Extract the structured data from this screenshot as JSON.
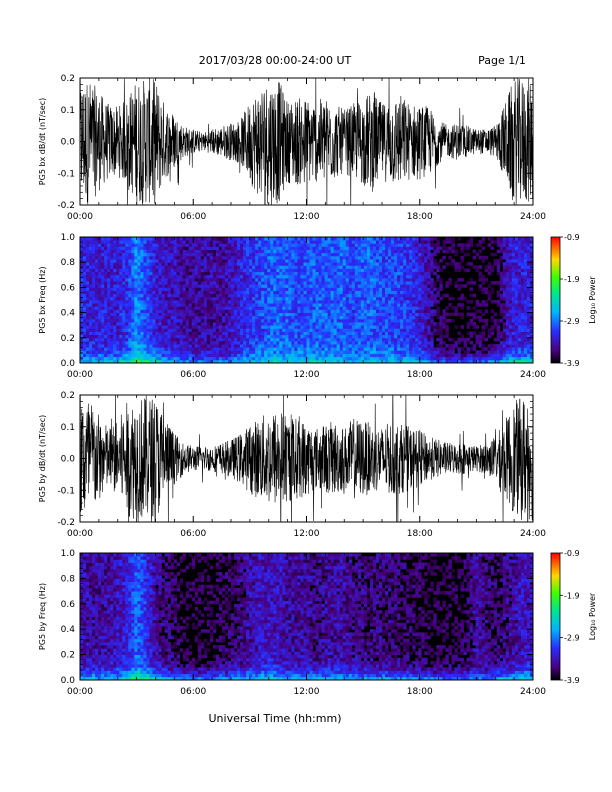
{
  "header": {
    "title": "2017/03/28   00:00-24:00 UT",
    "page": "Page 1/1"
  },
  "footer": {
    "xlabel": "Universal Time (hh:mm)"
  },
  "colorbar": {
    "label": "Log₁₀ Power",
    "ticks": [
      "-0.9",
      "-1.9",
      "-2.9",
      "-3.9"
    ],
    "range": [
      -3.9,
      -0.9
    ],
    "colormap": "rainbow"
  },
  "colors": {
    "trace": "#000000",
    "background": "#ffffff",
    "spectrogram_floor": "#000000"
  },
  "chart_data": [
    {
      "type": "line",
      "ylabel": "PG5 bx dB/dt (nT/sec)",
      "xlim": [
        "00:00",
        "24:00"
      ],
      "ylim": [
        -0.2,
        0.2
      ],
      "xticks": [
        "00:00",
        "06:00",
        "12:00",
        "18:00",
        "24:00"
      ],
      "yticks": [
        "-0.2",
        "-0.1",
        "0.0",
        "0.1",
        "0.2"
      ],
      "series": [
        {
          "x_hours": [
            0.0,
            0.5,
            1.0,
            1.5,
            2.0,
            2.5,
            3.0,
            3.5,
            4.0,
            4.5,
            5.0,
            5.5,
            6.0,
            6.5,
            7.0,
            7.5,
            8.0,
            8.5,
            9.0,
            9.5,
            10.0,
            10.5,
            11.0,
            11.5,
            12.0,
            12.5,
            13.0,
            13.5,
            14.0,
            14.5,
            15.0,
            15.5,
            16.0,
            16.5,
            17.0,
            17.5,
            18.0,
            18.5,
            19.0,
            19.5,
            20.0,
            20.5,
            21.0,
            21.5,
            22.0,
            22.5,
            23.0,
            23.5,
            24.0
          ],
          "amplitude": [
            0.2,
            0.2,
            0.16,
            0.12,
            0.11,
            0.14,
            0.2,
            0.2,
            0.2,
            0.12,
            0.09,
            0.05,
            0.04,
            0.03,
            0.04,
            0.05,
            0.06,
            0.07,
            0.13,
            0.18,
            0.2,
            0.2,
            0.13,
            0.14,
            0.14,
            0.13,
            0.14,
            0.12,
            0.1,
            0.12,
            0.14,
            0.16,
            0.12,
            0.14,
            0.15,
            0.12,
            0.12,
            0.11,
            0.07,
            0.05,
            0.06,
            0.05,
            0.04,
            0.04,
            0.05,
            0.12,
            0.2,
            0.2,
            0.2
          ]
        }
      ]
    },
    {
      "type": "heatmap",
      "ylabel": "PG5 bx Freq (Hz)",
      "xlim": [
        "00:00",
        "24:00"
      ],
      "ylim": [
        0.0,
        1.0
      ],
      "xticks": [
        "00:00",
        "06:00",
        "12:00",
        "18:00",
        "24:00"
      ],
      "yticks": [
        "0.0",
        "0.2",
        "0.4",
        "0.6",
        "0.8",
        "1.0"
      ],
      "zlim": [
        -3.9,
        -0.9
      ],
      "x_hours": [
        0.0,
        0.5,
        1.0,
        1.5,
        2.0,
        2.5,
        3.0,
        3.5,
        4.0,
        4.5,
        5.0,
        5.5,
        6.0,
        6.5,
        7.0,
        7.5,
        8.0,
        8.5,
        9.0,
        9.5,
        10.0,
        10.5,
        11.0,
        11.5,
        12.0,
        12.5,
        13.0,
        13.5,
        14.0,
        14.5,
        15.0,
        15.5,
        16.0,
        16.5,
        17.0,
        17.5,
        18.0,
        18.5,
        19.0,
        19.5,
        20.0,
        20.5,
        21.0,
        21.5,
        22.0,
        22.5,
        23.0,
        23.5,
        24.0
      ],
      "broadband_log_power": [
        -3.2,
        -3.3,
        -3.3,
        -3.3,
        -3.3,
        -3.2,
        -2.8,
        -3.1,
        -3.3,
        -3.4,
        -3.4,
        -3.5,
        -3.5,
        -3.5,
        -3.5,
        -3.5,
        -3.4,
        -3.3,
        -3.2,
        -3.1,
        -3.0,
        -3.0,
        -3.0,
        -3.1,
        -3.0,
        -3.0,
        -3.0,
        -3.0,
        -3.0,
        -3.1,
        -3.0,
        -3.0,
        -3.1,
        -3.1,
        -3.1,
        -3.2,
        -3.3,
        -3.5,
        -3.7,
        -3.8,
        -3.8,
        -3.8,
        -3.8,
        -3.8,
        -3.8,
        -3.5,
        -3.3,
        -3.3,
        -3.3
      ],
      "low_freq_log_power": [
        -2.6,
        -2.5,
        -2.4,
        -2.5,
        -2.4,
        -2.1,
        -1.8,
        -1.9,
        -2.2,
        -2.4,
        -2.5,
        -2.6,
        -2.7,
        -2.7,
        -2.8,
        -2.7,
        -2.7,
        -2.6,
        -2.5,
        -2.4,
        -2.3,
        -2.3,
        -2.4,
        -2.4,
        -2.4,
        -2.4,
        -2.4,
        -2.5,
        -2.5,
        -2.5,
        -2.5,
        -2.5,
        -2.5,
        -2.5,
        -2.5,
        -2.5,
        -2.6,
        -2.7,
        -2.8,
        -2.9,
        -3.0,
        -3.0,
        -2.9,
        -2.8,
        -2.5,
        -2.3,
        -2.2,
        -2.2,
        -2.2
      ]
    },
    {
      "type": "line",
      "ylabel": "PG5 by dB/dt (nT/sec)",
      "xlim": [
        "00:00",
        "24:00"
      ],
      "ylim": [
        -0.2,
        0.2
      ],
      "xticks": [
        "00:00",
        "06:00",
        "12:00",
        "18:00",
        "24:00"
      ],
      "yticks": [
        "-0.2",
        "-0.1",
        "0.0",
        "0.1",
        "0.2"
      ],
      "series": [
        {
          "x_hours": [
            0.0,
            0.5,
            1.0,
            1.5,
            2.0,
            2.5,
            3.0,
            3.5,
            4.0,
            4.5,
            5.0,
            5.5,
            6.0,
            6.5,
            7.0,
            7.5,
            8.0,
            8.5,
            9.0,
            9.5,
            10.0,
            10.5,
            11.0,
            11.5,
            12.0,
            12.5,
            13.0,
            13.5,
            14.0,
            14.5,
            15.0,
            15.5,
            16.0,
            16.5,
            17.0,
            17.5,
            18.0,
            18.5,
            19.0,
            19.5,
            20.0,
            20.5,
            21.0,
            21.5,
            22.0,
            22.5,
            23.0,
            23.5,
            24.0
          ],
          "amplitude": [
            0.2,
            0.2,
            0.14,
            0.1,
            0.12,
            0.18,
            0.2,
            0.2,
            0.2,
            0.14,
            0.08,
            0.05,
            0.04,
            0.04,
            0.04,
            0.05,
            0.06,
            0.08,
            0.11,
            0.13,
            0.15,
            0.16,
            0.14,
            0.13,
            0.12,
            0.1,
            0.11,
            0.12,
            0.1,
            0.13,
            0.12,
            0.11,
            0.1,
            0.12,
            0.11,
            0.1,
            0.09,
            0.07,
            0.06,
            0.05,
            0.05,
            0.05,
            0.04,
            0.05,
            0.07,
            0.12,
            0.18,
            0.2,
            0.2
          ]
        }
      ]
    },
    {
      "type": "heatmap",
      "ylabel": "PG5 by Freq (Hz)",
      "xlim": [
        "00:00",
        "24:00"
      ],
      "ylim": [
        0.0,
        1.0
      ],
      "xticks": [
        "00:00",
        "06:00",
        "12:00",
        "18:00",
        "24:00"
      ],
      "yticks": [
        "0.0",
        "0.2",
        "0.4",
        "0.6",
        "0.8",
        "1.0"
      ],
      "zlim": [
        -3.9,
        -0.9
      ],
      "x_hours": [
        0.0,
        0.5,
        1.0,
        1.5,
        2.0,
        2.5,
        3.0,
        3.5,
        4.0,
        4.5,
        5.0,
        5.5,
        6.0,
        6.5,
        7.0,
        7.5,
        8.0,
        8.5,
        9.0,
        9.5,
        10.0,
        10.5,
        11.0,
        11.5,
        12.0,
        12.5,
        13.0,
        13.5,
        14.0,
        14.5,
        15.0,
        15.5,
        16.0,
        16.5,
        17.0,
        17.5,
        18.0,
        18.5,
        19.0,
        19.5,
        20.0,
        20.5,
        21.0,
        21.5,
        22.0,
        22.5,
        23.0,
        23.5,
        24.0
      ],
      "broadband_log_power": [
        -3.4,
        -3.5,
        -3.5,
        -3.5,
        -3.4,
        -3.3,
        -3.0,
        -3.2,
        -3.5,
        -3.6,
        -3.7,
        -3.8,
        -3.8,
        -3.8,
        -3.8,
        -3.7,
        -3.7,
        -3.6,
        -3.5,
        -3.4,
        -3.4,
        -3.4,
        -3.5,
        -3.5,
        -3.5,
        -3.6,
        -3.5,
        -3.5,
        -3.5,
        -3.6,
        -3.6,
        -3.6,
        -3.6,
        -3.6,
        -3.7,
        -3.7,
        -3.7,
        -3.8,
        -3.8,
        -3.8,
        -3.8,
        -3.7,
        -3.5,
        -3.6,
        -3.7,
        -3.6,
        -3.5,
        -3.4,
        -3.4
      ],
      "low_freq_log_power": [
        -2.5,
        -2.4,
        -2.4,
        -2.4,
        -2.4,
        -2.1,
        -1.8,
        -1.9,
        -2.2,
        -2.4,
        -2.5,
        -2.6,
        -2.6,
        -2.7,
        -2.7,
        -2.6,
        -2.5,
        -2.5,
        -2.4,
        -2.3,
        -2.3,
        -2.4,
        -2.4,
        -2.5,
        -2.5,
        -2.5,
        -2.5,
        -2.5,
        -2.4,
        -2.5,
        -2.5,
        -2.6,
        -2.6,
        -2.6,
        -2.6,
        -2.6,
        -2.6,
        -2.7,
        -2.8,
        -2.9,
        -2.9,
        -2.9,
        -2.8,
        -2.8,
        -2.6,
        -2.4,
        -2.3,
        -2.3,
        -2.3
      ]
    }
  ]
}
